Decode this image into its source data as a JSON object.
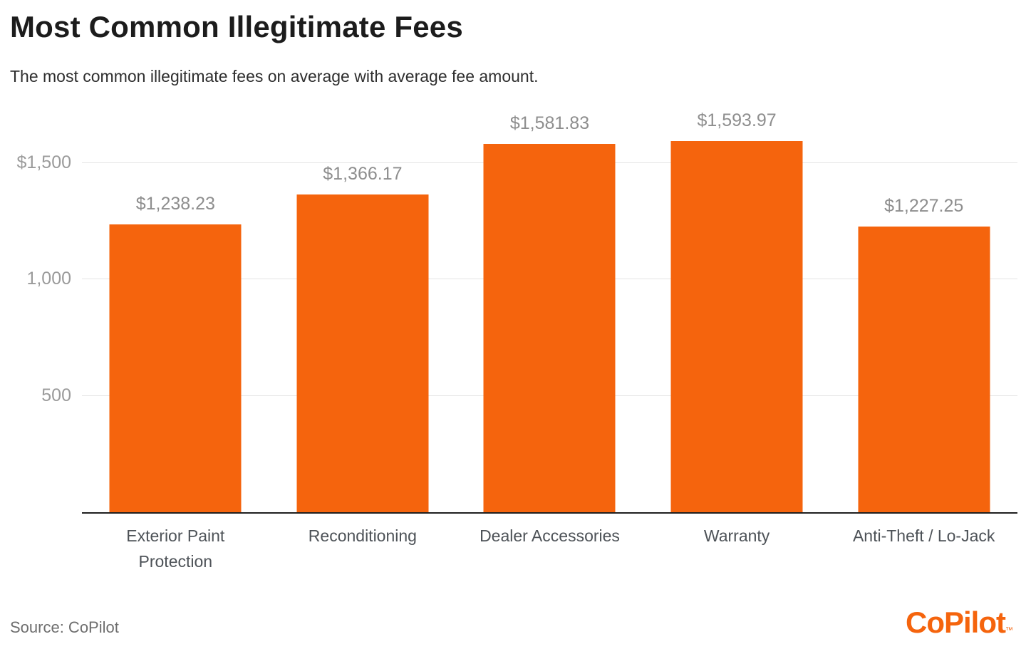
{
  "header": {
    "title": "Most Common Illegitimate Fees",
    "subtitle": "The most common illegitimate fees on average with average fee amount."
  },
  "chart_data": {
    "type": "bar",
    "title": "Most Common Illegitimate Fees",
    "subtitle": "The most common illegitimate fees on average with average fee amount.",
    "categories": [
      "Exterior Paint Protection",
      "Reconditioning",
      "Dealer Accessories",
      "Warranty",
      "Anti-Theft / Lo-Jack"
    ],
    "values": [
      1238.23,
      1366.17,
      1581.83,
      1593.97,
      1227.25
    ],
    "value_labels": [
      "$1,238.23",
      "$1,366.17",
      "$1,581.83",
      "$1,593.97",
      "$1,227.25"
    ],
    "xlabel": "",
    "ylabel": "",
    "ylim": [
      0,
      1714
    ],
    "yticks": [
      {
        "value": 500,
        "label": "500"
      },
      {
        "value": 1000,
        "label": "1,000"
      },
      {
        "value": 1500,
        "label": "$1,500"
      }
    ],
    "grid": "horizontal-only",
    "legend": "none",
    "bar_color": "#F5640D"
  },
  "footer": {
    "source": "Source: CoPilot",
    "logo_text": "CoPilot",
    "logo_tm": "™"
  },
  "colors": {
    "bar_orange": "#F5640D",
    "logo_orange": "#F5640D",
    "title_text": "#1c1c1c",
    "tick_text": "#9b9b9b",
    "value_label_text": "#8e8e8e",
    "category_text": "#4d5257",
    "gridline": "#e4e4e4",
    "axis_line": "#1f1f1f"
  }
}
